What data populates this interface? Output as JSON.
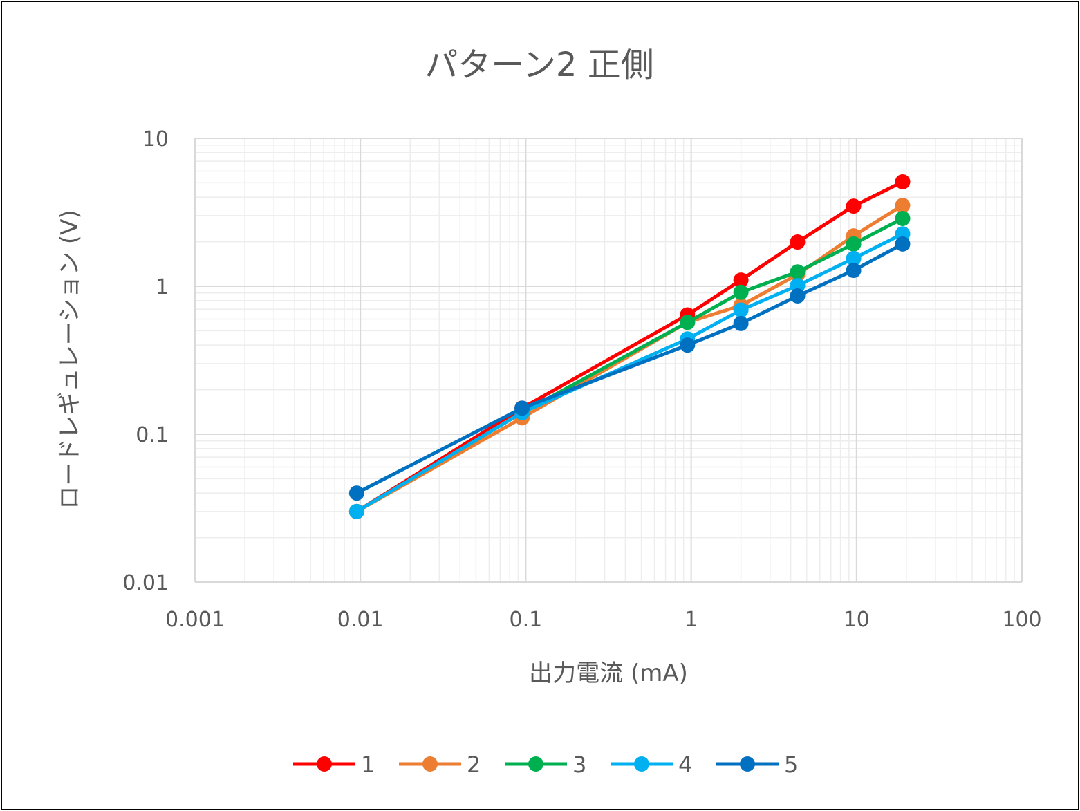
{
  "chart_data": {
    "type": "line",
    "title": "パターン2 正側",
    "xlabel": "出力電流 (mA)",
    "ylabel": "ロードレギュレーション (V)",
    "xscale": "log",
    "yscale": "log",
    "xlim": [
      0.001,
      100
    ],
    "ylim": [
      0.01,
      10
    ],
    "xticks": [
      "0.001",
      "0.01",
      "0.1",
      "1",
      "10",
      "100"
    ],
    "yticks": [
      "0.01",
      "0.1",
      "1",
      "10"
    ],
    "grid": true,
    "legend_position": "bottom",
    "x": [
      0.0095,
      0.095,
      0.95,
      2.0,
      4.4,
      9.6,
      19
    ],
    "series": [
      {
        "name": "1",
        "color": "#FF0000",
        "values": [
          0.03,
          0.15,
          0.64,
          1.1,
          1.99,
          3.48,
          5.08
        ]
      },
      {
        "name": "2",
        "color": "#ED7D31",
        "values": [
          0.03,
          0.129,
          0.57,
          0.74,
          1.2,
          2.19,
          3.52
        ]
      },
      {
        "name": "3",
        "color": "#00B050",
        "values": [
          0.03,
          0.14,
          0.57,
          0.91,
          1.25,
          1.93,
          2.87
        ]
      },
      {
        "name": "4",
        "color": "#00B0F0",
        "values": [
          0.03,
          0.14,
          0.44,
          0.69,
          1.01,
          1.54,
          2.26
        ]
      },
      {
        "name": "5",
        "color": "#0070C0",
        "values": [
          0.04,
          0.15,
          0.4,
          0.56,
          0.86,
          1.28,
          1.93
        ]
      }
    ]
  }
}
